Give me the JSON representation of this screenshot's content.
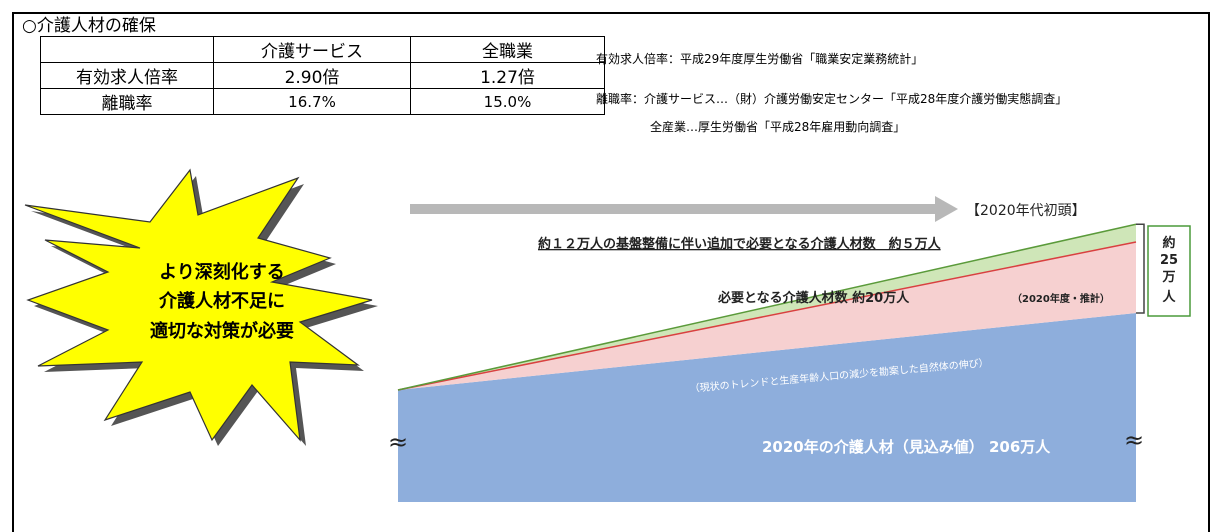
{
  "section_title": "○介護人材の確保",
  "table": {
    "headers": [
      "",
      "介護サービス",
      "全職業"
    ],
    "rows": [
      [
        "有効求人倍率",
        "2.90倍",
        "1.27倍"
      ],
      [
        "離職率",
        "16.7%",
        "15.0%"
      ]
    ]
  },
  "sources": [
    "有効求人倍率：平成29年度厚生労働省「職業安定業務統計」",
    "離職率：介護サービス…（財）介護労働安定センター「平成28年度介護労働実態調査」",
    "全産業…厚生労働省「平成28年雇用動向調査」"
  ],
  "burst": {
    "lines": [
      "より深刻化する",
      "介護人材不足に",
      "適切な対策が必要"
    ],
    "fill_color": "#ffff00",
    "shadow_color": "#000000"
  },
  "chart_data": {
    "type": "area",
    "period_label": "【2020年代初頭】",
    "unit": "万人",
    "baseline": {
      "label": "2020年の介護人材（見込み値） 206万人",
      "value": 206,
      "color": "#8eaedc"
    },
    "series": [
      {
        "label": "必要となる介護人材数 約20万人",
        "note": "（2020年度・推計）",
        "value": 20,
        "color": "#f6d0d0",
        "line_color": "#d94040"
      },
      {
        "label": "約１２万人の基盤整備に伴い追加で必要となる介護人材数　約５万人",
        "value": 5,
        "color": "#cfe6b8",
        "line_color": "#5a9a3a"
      }
    ],
    "trend_label": "（現状のトレンドと生産年齢人口の減少を勘案した自然体の伸び）",
    "total_label": [
      "約",
      "25",
      "万",
      "人"
    ],
    "total_value": 25,
    "arrow_color": "#b8b8b8",
    "break_mark": "≈"
  }
}
